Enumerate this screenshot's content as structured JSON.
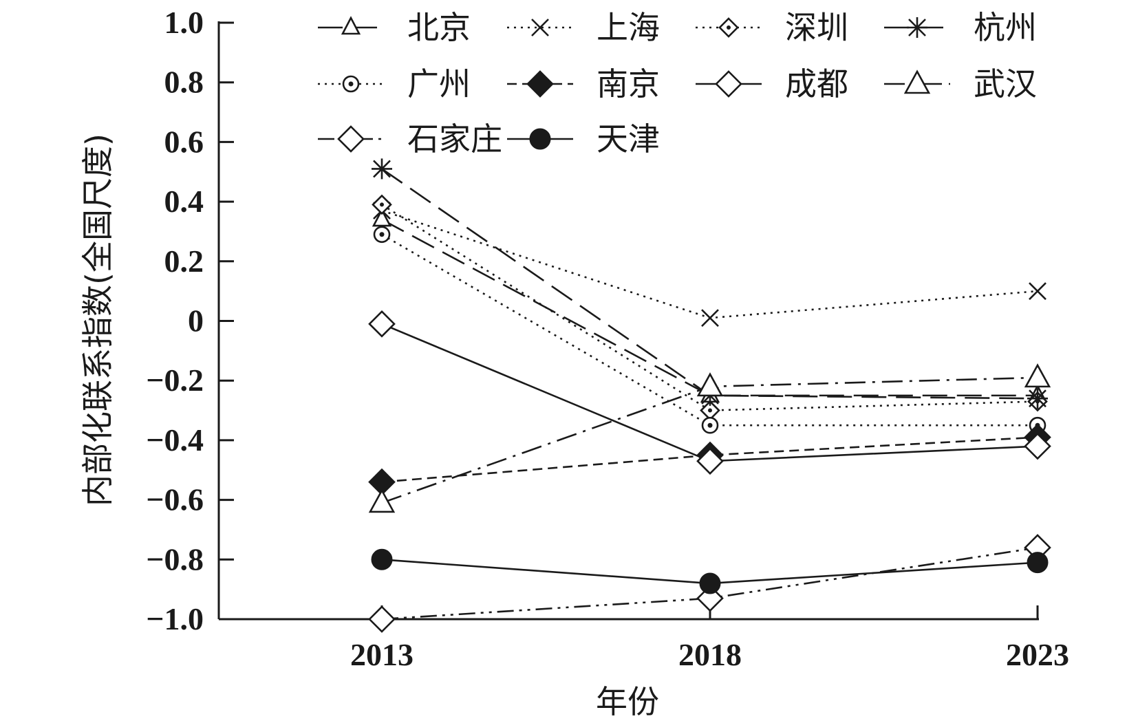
{
  "chart_data": {
    "type": "line",
    "xlabel": "年份",
    "ylabel": "内部化联系指数(全国尺度)",
    "categories": [
      "2013",
      "2018",
      "2023"
    ],
    "ylim": [
      -1.0,
      1.0
    ],
    "yticks": [
      1.0,
      0.8,
      0.6,
      0.4,
      0.2,
      0,
      -0.2,
      -0.4,
      -0.6,
      -0.8,
      -1.0
    ],
    "ytick_labels": [
      "1.0",
      "0.8",
      "0.6",
      "0.4",
      "0.2",
      "0",
      "−0.2",
      "−0.4",
      "−0.6",
      "−0.8",
      "−1.0"
    ],
    "grid": false,
    "legend_position": "top",
    "series": [
      {
        "name": "北京",
        "values": [
          0.34,
          -0.25,
          -0.25
        ],
        "marker": "triangle-open-small",
        "line": "long-dash"
      },
      {
        "name": "上海",
        "values": [
          0.37,
          0.01,
          0.1
        ],
        "marker": "x",
        "line": "dotted"
      },
      {
        "name": "深圳",
        "values": [
          0.39,
          -0.3,
          -0.27
        ],
        "marker": "diamond-dot",
        "line": "dotted"
      },
      {
        "name": "杭州",
        "values": [
          0.51,
          -0.25,
          -0.26
        ],
        "marker": "asterisk",
        "line": "long-dash"
      },
      {
        "name": "广州",
        "values": [
          0.29,
          -0.35,
          -0.35
        ],
        "marker": "circle-dot",
        "line": "dotted"
      },
      {
        "name": "南京",
        "values": [
          -0.54,
          -0.45,
          -0.39
        ],
        "marker": "diamond-filled",
        "line": "short-dash"
      },
      {
        "name": "成都",
        "values": [
          -0.01,
          -0.47,
          -0.42
        ],
        "marker": "diamond-open",
        "line": "solid"
      },
      {
        "name": "武汉",
        "values": [
          -0.61,
          -0.22,
          -0.19
        ],
        "marker": "triangle-open",
        "line": "dash-dot"
      },
      {
        "name": "石家庄",
        "values": [
          -1.0,
          -0.93,
          -0.76
        ],
        "marker": "diamond-open",
        "line": "dash-dot-dot"
      },
      {
        "name": "天津",
        "values": [
          -0.8,
          -0.88,
          -0.81
        ],
        "marker": "circle-filled",
        "line": "solid"
      }
    ]
  }
}
